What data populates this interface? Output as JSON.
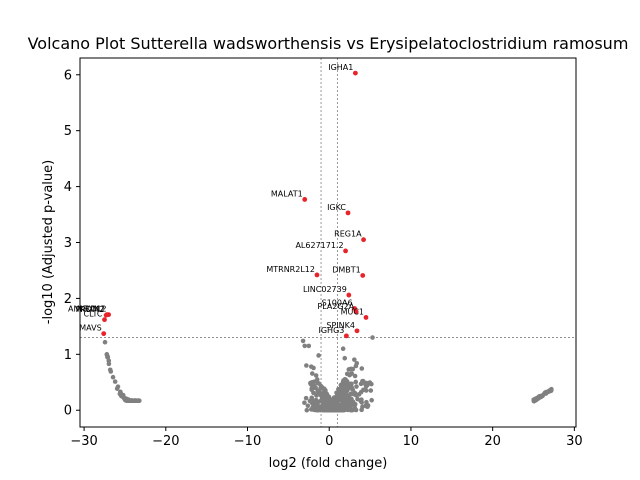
{
  "chart_data": {
    "type": "scatter",
    "title": "Volcano Plot Sutterella wadsworthensis vs Erysipelatoclostridium ramosum",
    "xlabel": "log2 (fold change)",
    "ylabel": "-log10 (Adjusted p-value)",
    "xlim": [
      -30.5,
      30.2
    ],
    "ylim": [
      -0.3,
      6.3
    ],
    "xticks": [
      -30,
      -20,
      -10,
      0,
      10,
      20,
      30
    ],
    "yticks": [
      0,
      1,
      2,
      3,
      4,
      5,
      6
    ],
    "grid": false,
    "colors": {
      "significant": "#e8232a",
      "nonsignificant": "#808080",
      "threshold_line": "#808080"
    },
    "thresholds": {
      "log2fc": [
        -1,
        1
      ],
      "neg_log10_p": 1.3
    },
    "significant_points": [
      {
        "label": "IGHA1",
        "x": 3.2,
        "y": 6.03
      },
      {
        "label": "MALAT1",
        "x": -3.0,
        "y": 3.77
      },
      {
        "label": "IGKC",
        "x": 2.3,
        "y": 3.53
      },
      {
        "label": "REG1A",
        "x": 4.2,
        "y": 3.05
      },
      {
        "label": "AL627171.2",
        "x": 2.0,
        "y": 2.85
      },
      {
        "label": "MTRNR2L12",
        "x": -1.5,
        "y": 2.42
      },
      {
        "label": "DMBT1",
        "x": 4.1,
        "y": 2.41
      },
      {
        "label": "LINC02739",
        "x": 2.4,
        "y": 2.06
      },
      {
        "label": "S100A6",
        "x": 3.1,
        "y": 1.82
      },
      {
        "label": "PLA2G2A",
        "x": 3.3,
        "y": 1.76
      },
      {
        "label": "MUC1",
        "x": 4.5,
        "y": 1.66
      },
      {
        "label": "SPINK4",
        "x": 3.4,
        "y": 1.42
      },
      {
        "label": "IGHG3",
        "x": 2.1,
        "y": 1.33
      },
      {
        "label": "ANKRD12",
        "x": -27.0,
        "y": 1.71
      },
      {
        "label": "NRXN2",
        "x": -27.2,
        "y": 1.71
      },
      {
        "label": "PRDM2",
        "x": -27.3,
        "y": 1.7
      },
      {
        "label": "CLTC",
        "x": -27.5,
        "y": 1.62
      },
      {
        "label": "MAVS",
        "x": -27.6,
        "y": 1.37
      }
    ]
  }
}
